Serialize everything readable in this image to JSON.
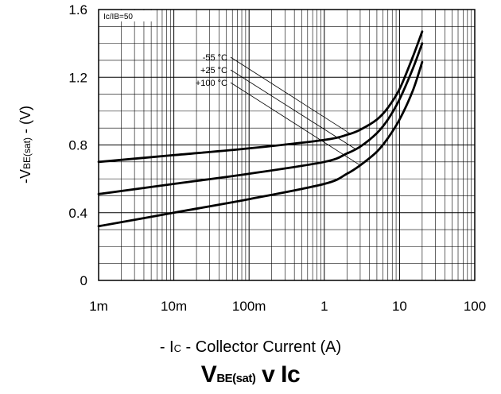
{
  "chart_data": {
    "type": "line",
    "title": {
      "main": "V",
      "sub": "BE(sat)",
      "rest": " v Ic"
    },
    "xlabel": {
      "prefix": "- I",
      "sub": "C",
      "rest": " - Collector Current (A)"
    },
    "ylabel": {
      "prefix": "-V",
      "sub": "BE(sat)",
      "rest": " - (V)"
    },
    "condition": "Ic/IB=50",
    "x_scale": "log",
    "xlim": [
      0.001,
      100
    ],
    "ylim": [
      0,
      1.6
    ],
    "x_ticks": [
      {
        "value": 0.001,
        "label": "1m"
      },
      {
        "value": 0.01,
        "label": "10m"
      },
      {
        "value": 0.1,
        "label": "100m"
      },
      {
        "value": 1,
        "label": "1"
      },
      {
        "value": 10,
        "label": "10"
      },
      {
        "value": 100,
        "label": "100"
      }
    ],
    "y_ticks": [
      {
        "value": 0,
        "label": "0"
      },
      {
        "value": 0.4,
        "label": "0.4"
      },
      {
        "value": 0.8,
        "label": "0.8"
      },
      {
        "value": 1.2,
        "label": "1.2"
      },
      {
        "value": 1.6,
        "label": "1.6"
      }
    ],
    "grid": true,
    "series": [
      {
        "name": "-55 °C",
        "x": [
          0.001,
          0.01,
          0.1,
          1,
          2,
          3,
          5,
          7,
          10,
          15,
          20
        ],
        "y": [
          0.7,
          0.74,
          0.78,
          0.83,
          0.86,
          0.89,
          0.95,
          1.02,
          1.13,
          1.32,
          1.47
        ]
      },
      {
        "name": "+25 °C",
        "x": [
          0.001,
          0.01,
          0.1,
          1,
          2,
          3,
          5,
          7,
          10,
          15,
          20
        ],
        "y": [
          0.51,
          0.57,
          0.63,
          0.7,
          0.75,
          0.79,
          0.87,
          0.95,
          1.07,
          1.25,
          1.4
        ]
      },
      {
        "name": "+100 °C",
        "x": [
          0.001,
          0.01,
          0.1,
          1,
          2,
          3,
          5,
          7,
          10,
          15,
          20
        ],
        "y": [
          0.32,
          0.4,
          0.48,
          0.57,
          0.63,
          0.68,
          0.76,
          0.84,
          0.95,
          1.12,
          1.29
        ]
      }
    ],
    "legend_placement": "upper-middle with leader lines to curves"
  }
}
